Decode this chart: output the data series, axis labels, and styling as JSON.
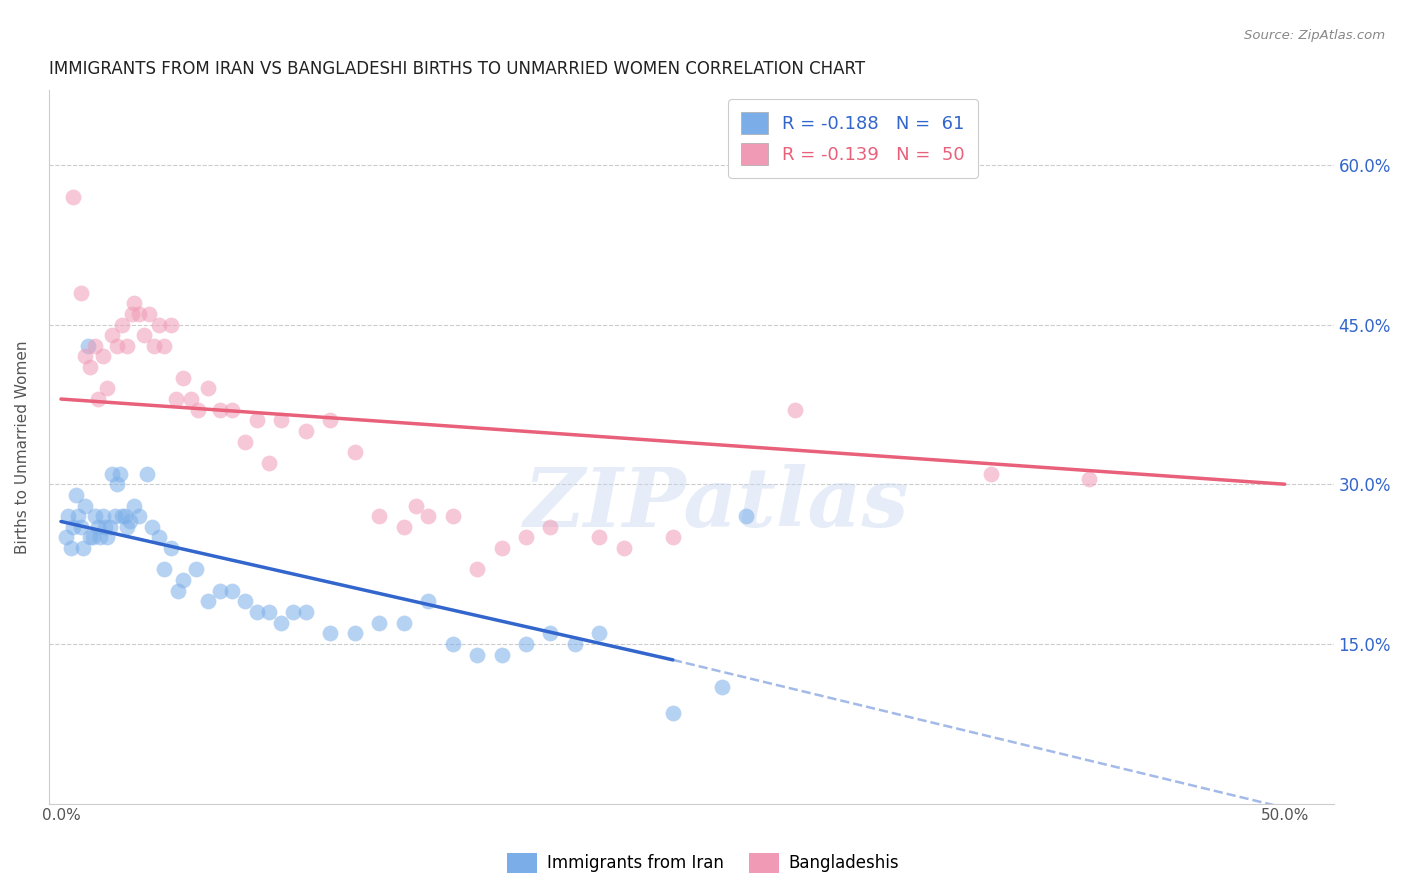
{
  "title": "IMMIGRANTS FROM IRAN VS BANGLADESHI BIRTHS TO UNMARRIED WOMEN CORRELATION CHART",
  "source": "Source: ZipAtlas.com",
  "ylabel": "Births to Unmarried Women",
  "x_tick_labels": [
    "0.0%",
    "",
    "",
    "",
    "",
    "50.0%"
  ],
  "x_tick_values": [
    0.0,
    10.0,
    20.0,
    30.0,
    40.0,
    50.0
  ],
  "y_tick_labels": [
    "15.0%",
    "30.0%",
    "45.0%",
    "60.0%"
  ],
  "y_tick_values": [
    15.0,
    30.0,
    45.0,
    60.0
  ],
  "xlim": [
    -0.5,
    52.0
  ],
  "ylim": [
    0.0,
    67.0
  ],
  "legend_entry_1": "R = -0.188   N =  61",
  "legend_entry_2": "R = -0.139   N =  50",
  "legend_label_1": "Immigrants from Iran",
  "legend_label_2": "Bangladeshis",
  "watermark": "ZIPatlas",
  "blue_color": "#7baee8",
  "pink_color": "#f09ab5",
  "blue_line_color": "#3366cc",
  "pink_line_color": "#e8607a",
  "blue_scatter": [
    [
      0.2,
      25.0
    ],
    [
      0.3,
      27.0
    ],
    [
      0.4,
      24.0
    ],
    [
      0.5,
      26.0
    ],
    [
      0.6,
      29.0
    ],
    [
      0.7,
      27.0
    ],
    [
      0.8,
      26.0
    ],
    [
      0.9,
      24.0
    ],
    [
      1.0,
      28.0
    ],
    [
      1.1,
      43.0
    ],
    [
      1.2,
      25.0
    ],
    [
      1.3,
      25.0
    ],
    [
      1.4,
      27.0
    ],
    [
      1.5,
      26.0
    ],
    [
      1.6,
      25.0
    ],
    [
      1.7,
      27.0
    ],
    [
      1.8,
      26.0
    ],
    [
      1.9,
      25.0
    ],
    [
      2.0,
      26.0
    ],
    [
      2.1,
      31.0
    ],
    [
      2.2,
      27.0
    ],
    [
      2.3,
      30.0
    ],
    [
      2.4,
      31.0
    ],
    [
      2.5,
      27.0
    ],
    [
      2.6,
      27.0
    ],
    [
      2.7,
      26.0
    ],
    [
      2.8,
      26.5
    ],
    [
      3.0,
      28.0
    ],
    [
      3.2,
      27.0
    ],
    [
      3.5,
      31.0
    ],
    [
      3.7,
      26.0
    ],
    [
      4.0,
      25.0
    ],
    [
      4.2,
      22.0
    ],
    [
      4.5,
      24.0
    ],
    [
      4.8,
      20.0
    ],
    [
      5.0,
      21.0
    ],
    [
      5.5,
      22.0
    ],
    [
      6.0,
      19.0
    ],
    [
      6.5,
      20.0
    ],
    [
      7.0,
      20.0
    ],
    [
      7.5,
      19.0
    ],
    [
      8.0,
      18.0
    ],
    [
      8.5,
      18.0
    ],
    [
      9.0,
      17.0
    ],
    [
      9.5,
      18.0
    ],
    [
      10.0,
      18.0
    ],
    [
      11.0,
      16.0
    ],
    [
      12.0,
      16.0
    ],
    [
      13.0,
      17.0
    ],
    [
      14.0,
      17.0
    ],
    [
      15.0,
      19.0
    ],
    [
      16.0,
      15.0
    ],
    [
      17.0,
      14.0
    ],
    [
      18.0,
      14.0
    ],
    [
      19.0,
      15.0
    ],
    [
      20.0,
      16.0
    ],
    [
      21.0,
      15.0
    ],
    [
      22.0,
      16.0
    ],
    [
      25.0,
      8.5
    ],
    [
      27.0,
      11.0
    ],
    [
      28.0,
      27.0
    ]
  ],
  "pink_scatter": [
    [
      0.5,
      57.0
    ],
    [
      0.8,
      48.0
    ],
    [
      1.0,
      42.0
    ],
    [
      1.2,
      41.0
    ],
    [
      1.4,
      43.0
    ],
    [
      1.5,
      38.0
    ],
    [
      1.7,
      42.0
    ],
    [
      1.9,
      39.0
    ],
    [
      2.1,
      44.0
    ],
    [
      2.3,
      43.0
    ],
    [
      2.5,
      45.0
    ],
    [
      2.7,
      43.0
    ],
    [
      2.9,
      46.0
    ],
    [
      3.0,
      47.0
    ],
    [
      3.2,
      46.0
    ],
    [
      3.4,
      44.0
    ],
    [
      3.6,
      46.0
    ],
    [
      3.8,
      43.0
    ],
    [
      4.0,
      45.0
    ],
    [
      4.2,
      43.0
    ],
    [
      4.5,
      45.0
    ],
    [
      4.7,
      38.0
    ],
    [
      5.0,
      40.0
    ],
    [
      5.3,
      38.0
    ],
    [
      5.6,
      37.0
    ],
    [
      6.0,
      39.0
    ],
    [
      6.5,
      37.0
    ],
    [
      7.0,
      37.0
    ],
    [
      7.5,
      34.0
    ],
    [
      8.0,
      36.0
    ],
    [
      8.5,
      32.0
    ],
    [
      9.0,
      36.0
    ],
    [
      10.0,
      35.0
    ],
    [
      11.0,
      36.0
    ],
    [
      12.0,
      33.0
    ],
    [
      13.0,
      27.0
    ],
    [
      14.0,
      26.0
    ],
    [
      14.5,
      28.0
    ],
    [
      15.0,
      27.0
    ],
    [
      16.0,
      27.0
    ],
    [
      17.0,
      22.0
    ],
    [
      18.0,
      24.0
    ],
    [
      19.0,
      25.0
    ],
    [
      20.0,
      26.0
    ],
    [
      22.0,
      25.0
    ],
    [
      23.0,
      24.0
    ],
    [
      25.0,
      25.0
    ],
    [
      30.0,
      37.0
    ],
    [
      38.0,
      31.0
    ],
    [
      42.0,
      30.5
    ]
  ],
  "blue_line": {
    "x_start": 0.0,
    "y_start": 26.5,
    "x_end": 25.0,
    "y_end": 13.5
  },
  "blue_dashed": {
    "x_start": 25.0,
    "y_start": 13.5,
    "x_end": 52.0,
    "y_end": -1.5
  },
  "pink_line": {
    "x_start": 0.0,
    "y_start": 38.0,
    "x_end": 50.0,
    "y_end": 30.0
  }
}
